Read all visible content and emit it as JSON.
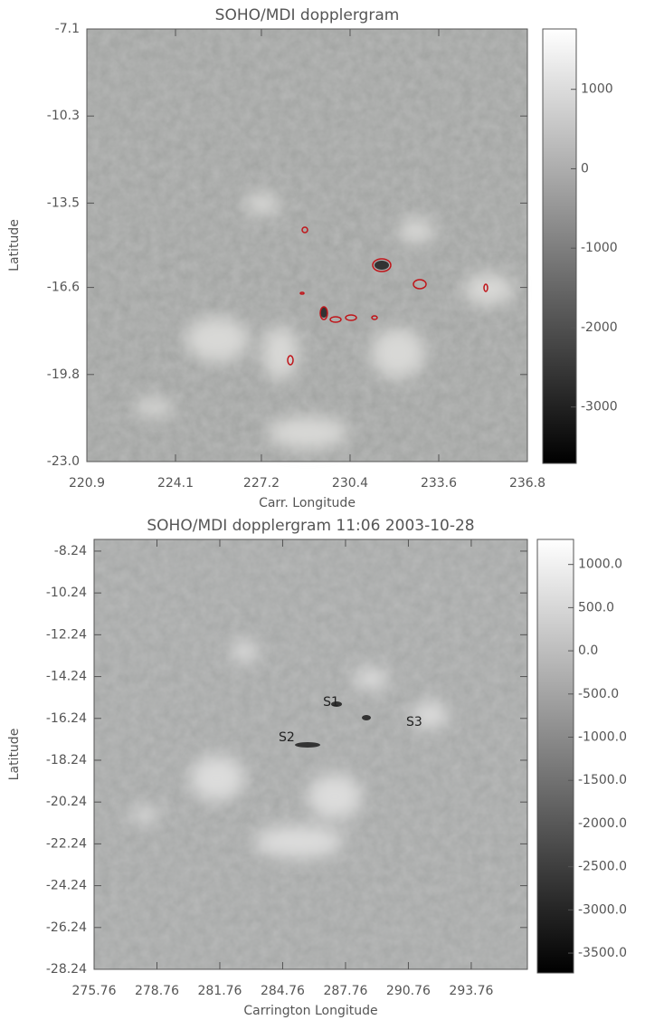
{
  "chart_data": [
    {
      "type": "image",
      "title": "SOHO/MDI dopplergram",
      "x_label": "Carr. Longitude",
      "y_label": "Latitude",
      "xlim": [
        220.9,
        236.8
      ],
      "xticks": [
        220.9,
        224.1,
        227.2,
        230.4,
        233.6,
        236.8
      ],
      "ylim": [
        -23,
        -7.1
      ],
      "yticks": [
        -7.1,
        -10.3,
        -13.5,
        -16.6,
        -19.8,
        {
          "value": -23,
          "label": "-23.0"
        }
      ],
      "clim": [
        -3710,
        1760
      ],
      "cticks": [
        1000,
        0,
        -1000,
        -2000,
        -3000
      ]
    },
    {
      "type": "image",
      "title": "SOHO/MDI dopplergram 11:06 2003-10-28",
      "x_label": "Carrington Longitude",
      "y_label": "Latitude",
      "xlim": [
        275.76,
        296.44
      ],
      "xticks": [
        275.76,
        278.76,
        281.76,
        284.76,
        287.76,
        290.76,
        293.76
      ],
      "ylim": [
        -28.24,
        -7.68
      ],
      "yticks": [
        -8.24,
        -10.24,
        -12.24,
        -14.24,
        -16.24,
        -18.24,
        -20.24,
        -22.24,
        -24.24,
        -26.24,
        -28.24
      ],
      "clim": [
        -3730,
        1290
      ],
      "cticks": [
        {
          "value": 1000,
          "label": "1000.0"
        },
        {
          "value": 500,
          "label": "500.0"
        },
        {
          "value": 0,
          "label": "0.0"
        },
        {
          "value": -500,
          "label": "-500.0"
        },
        {
          "value": -1000,
          "label": "-1000.0"
        },
        {
          "value": -1500,
          "label": "-1500.0"
        },
        {
          "value": -2000,
          "label": "-2000.0"
        },
        {
          "value": -2500,
          "label": "-2500.0"
        },
        {
          "value": -3000,
          "label": "-3000.0"
        },
        {
          "value": -3500,
          "label": "-3500.0"
        }
      ],
      "annotations": [
        {
          "text": "S1",
          "x": 287.07,
          "y": -15.47
        },
        {
          "text": "S2",
          "x": 284.95,
          "y": -17.16
        },
        {
          "text": "S3",
          "x": 291.04,
          "y": -16.42
        }
      ]
    }
  ]
}
